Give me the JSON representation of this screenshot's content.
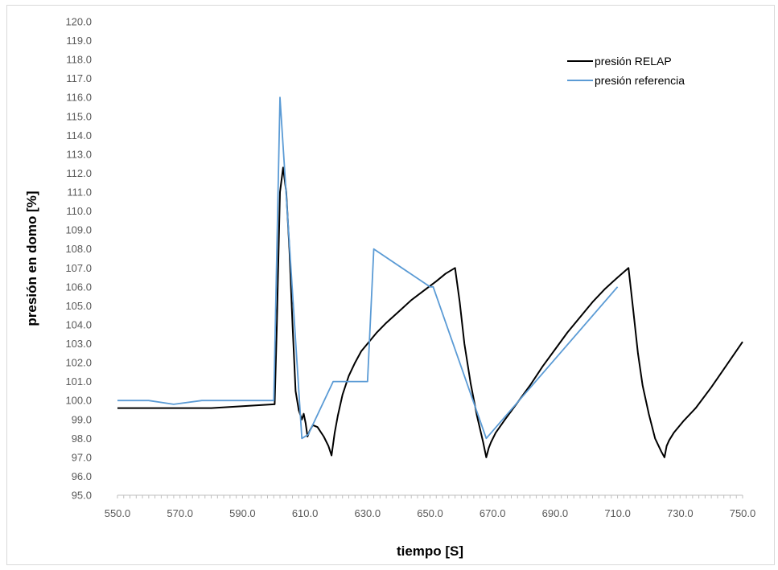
{
  "chart_data": {
    "type": "line",
    "title": "",
    "xlabel": "tiempo [S]",
    "ylabel": "presión en domo [%]",
    "xlim": [
      550,
      750
    ],
    "ylim": [
      95,
      120
    ],
    "x_ticks": [
      "550.0",
      "570.0",
      "590.0",
      "610.0",
      "630.0",
      "650.0",
      "670.0",
      "690.0",
      "710.0",
      "730.0",
      "750.0"
    ],
    "y_ticks": [
      "95.0",
      "96.0",
      "97.0",
      "98.0",
      "99.0",
      "100.0",
      "101.0",
      "102.0",
      "103.0",
      "104.0",
      "105.0",
      "106.0",
      "107.0",
      "108.0",
      "109.0",
      "110.0",
      "111.0",
      "112.0",
      "113.0",
      "114.0",
      "115.0",
      "116.0",
      "117.0",
      "118.0",
      "119.0",
      "120.0"
    ],
    "grid": false,
    "legend_position": "top-right",
    "series": [
      {
        "name": "presión RELAP",
        "color": "#000000",
        "x": [
          550,
          570,
          580,
          590,
          600,
          600.3,
          601,
          602,
          603,
          604,
          605,
          606,
          607,
          608,
          609,
          609.6,
          610.2,
          610.8,
          611.5,
          612.5,
          614,
          616,
          617.5,
          618.5,
          619.5,
          620.5,
          622,
          624,
          626,
          628,
          630,
          633,
          636,
          640,
          644,
          648,
          652,
          655,
          658,
          659.5,
          661,
          663,
          665,
          667,
          668,
          668.8,
          669.5,
          671,
          674,
          678,
          682,
          686,
          690,
          694,
          698,
          702,
          706,
          710,
          713.5,
          715,
          716.5,
          718,
          720,
          722,
          724,
          725,
          725.7,
          726.5,
          728,
          731,
          735,
          740,
          745,
          750
        ],
        "y": [
          99.6,
          99.6,
          99.6,
          99.7,
          99.8,
          99.8,
          104.0,
          111.0,
          112.3,
          111.0,
          108.0,
          104.0,
          100.5,
          99.5,
          99.0,
          99.3,
          98.8,
          98.1,
          98.4,
          98.7,
          98.6,
          98.1,
          97.6,
          97.1,
          98.3,
          99.2,
          100.3,
          101.3,
          102.0,
          102.6,
          103.0,
          103.6,
          104.1,
          104.7,
          105.3,
          105.8,
          106.3,
          106.7,
          107.0,
          105.2,
          103.0,
          100.9,
          99.2,
          97.8,
          97.0,
          97.5,
          97.8,
          98.3,
          99.0,
          99.9,
          100.8,
          101.8,
          102.7,
          103.6,
          104.4,
          105.2,
          105.9,
          106.5,
          107.0,
          104.8,
          102.5,
          100.8,
          99.3,
          98.0,
          97.3,
          97.0,
          97.6,
          97.9,
          98.3,
          98.9,
          99.6,
          100.7,
          101.9,
          103.1
        ]
      },
      {
        "name": "presión referencia",
        "color": "#5b9bd5",
        "x": [
          550,
          560,
          568,
          577,
          590,
          600,
          602,
          609,
          611,
          619,
          630,
          632,
          650,
          651,
          668,
          710
        ],
        "y": [
          100.0,
          100.0,
          99.8,
          100.0,
          100.0,
          100.0,
          116.0,
          98.0,
          98.2,
          101.0,
          101.0,
          108.0,
          106.0,
          106.0,
          98.0,
          106.0
        ]
      }
    ]
  }
}
